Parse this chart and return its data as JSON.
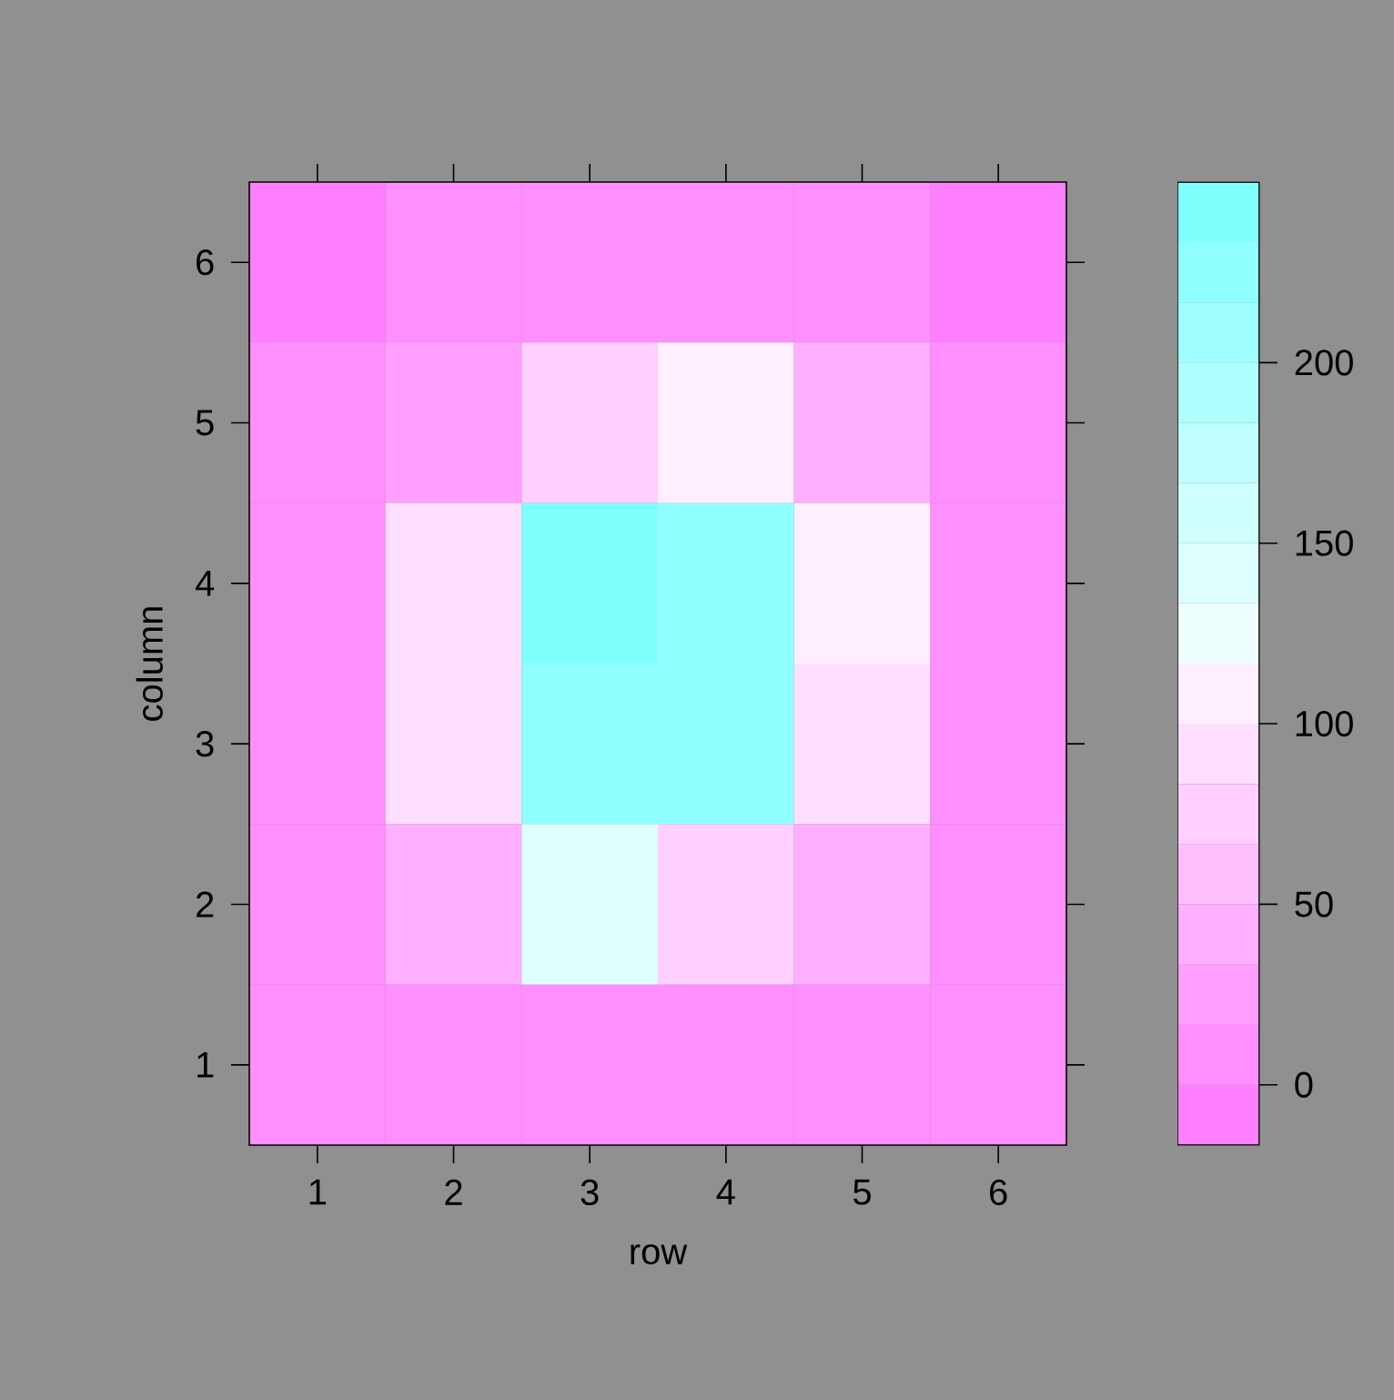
{
  "chart_data": {
    "type": "heatmap",
    "xlabel": "row",
    "ylabel": "column",
    "categories": [
      "1",
      "2",
      "3",
      "4",
      "5",
      "6"
    ],
    "y_categories": [
      "6",
      "5",
      "4",
      "3",
      "2",
      "1"
    ],
    "cells": [
      [
        -8,
        8,
        8,
        8,
        8,
        -8
      ],
      [
        8,
        25,
        75,
        108,
        45,
        8
      ],
      [
        8,
        92,
        242,
        225,
        108,
        8
      ],
      [
        8,
        92,
        225,
        225,
        92,
        8
      ],
      [
        8,
        45,
        142,
        75,
        45,
        8
      ],
      [
        8,
        8,
        8,
        8,
        8,
        8
      ]
    ],
    "clim": [
      -16.7,
      250
    ],
    "cticks": [
      0,
      50,
      100,
      150,
      200
    ]
  }
}
